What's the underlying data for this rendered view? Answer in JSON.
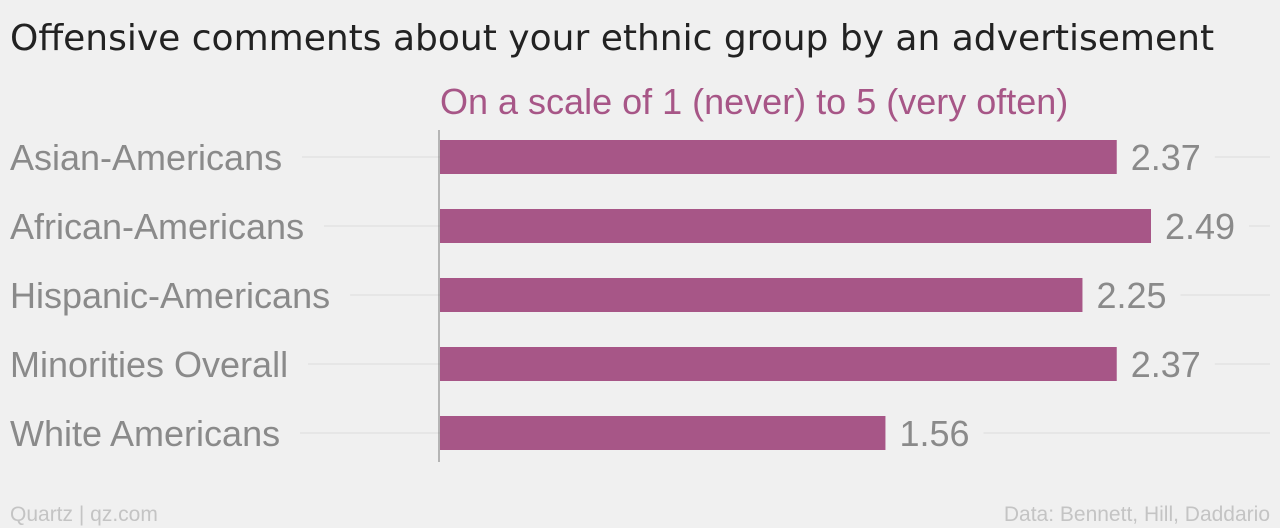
{
  "title": "Offensive comments about your ethnic group by an advertisement",
  "subtitle": "On a scale of 1 (never) to 5 (very often)",
  "colors": {
    "bar": "#a75687",
    "subtitle": "#a75687",
    "background": "#f0f0f0"
  },
  "chart_data": {
    "type": "bar",
    "orientation": "horizontal",
    "categories": [
      "Asian-Americans",
      "African-Americans",
      "Hispanic-Americans",
      "Minorities Overall",
      "White Americans"
    ],
    "values": [
      2.37,
      2.49,
      2.25,
      2.37,
      1.56
    ],
    "value_labels": [
      "2.37",
      "2.49",
      "2.25",
      "2.37",
      "1.56"
    ],
    "title": "Offensive comments about your ethnic group by an advertisement",
    "subtitle": "On a scale of 1 (never) to 5 (very often)",
    "xlabel": "",
    "ylabel": "",
    "xlim": [
      0,
      2.49
    ],
    "grid": true,
    "legend": "none"
  },
  "footer": {
    "left": "Quartz | qz.com",
    "right": "Data: Bennett, Hill, Daddario"
  }
}
